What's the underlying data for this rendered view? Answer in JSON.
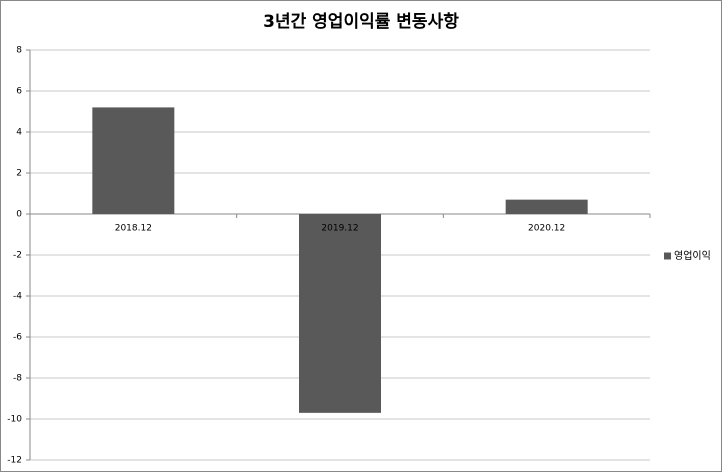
{
  "chart_data": {
    "type": "bar",
    "title": "3년간 영업이익률 변동사항",
    "categories": [
      "2018.12",
      "2019.12",
      "2020.12"
    ],
    "series": [
      {
        "name": "영업이익",
        "color": "#595959",
        "values": [
          5.2,
          -9.7,
          0.7
        ]
      }
    ],
    "ylim": [
      -12,
      8
    ],
    "yticks": [
      -12,
      -10,
      -8,
      -6,
      -4,
      -2,
      0,
      2,
      4,
      6,
      8
    ],
    "grid": true,
    "legend": "right"
  }
}
